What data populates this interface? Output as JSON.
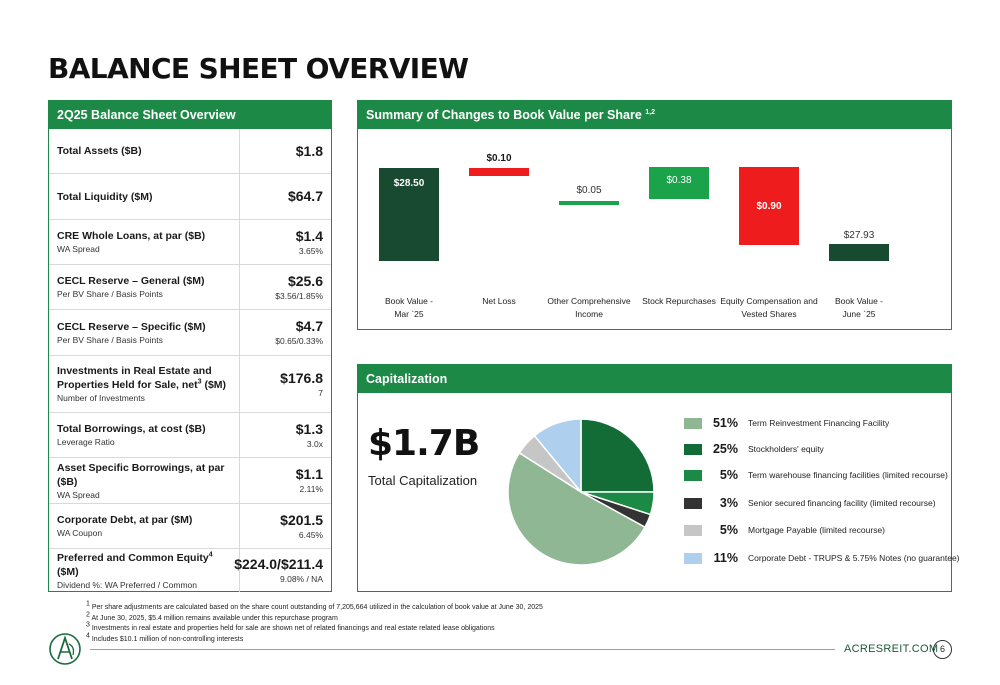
{
  "page": {
    "title": "BALANCE SHEET OVERVIEW"
  },
  "balance_table": {
    "title": "2Q25 Balance Sheet Overview",
    "rows": [
      {
        "label": "Total Assets ($B)",
        "sub": "",
        "value": "$1.8",
        "subvalue": ""
      },
      {
        "label": "Total Liquidity ($M)",
        "sub": "",
        "value": "$64.7",
        "subvalue": ""
      },
      {
        "label": "CRE Whole Loans, at par ($B)",
        "sub": "WA Spread",
        "value": "$1.4",
        "subvalue": "3.65%"
      },
      {
        "label": "CECL Reserve – General ($M)",
        "sub": "Per BV Share / Basis Points",
        "value": "$25.6",
        "subvalue": "$3.56/1.85%"
      },
      {
        "label": "CECL Reserve – Specific ($M)",
        "sub": "Per BV Share / Basis Points",
        "value": "$4.7",
        "subvalue": "$0.65/0.33%"
      },
      {
        "label_line1": "Investments in Real Estate and",
        "label_line2": "Properties Held for Sale, net",
        "label_sup": "3",
        "label_tail": " ($M)",
        "sub": "Number of Investments",
        "value": "$176.8",
        "subvalue": "7"
      },
      {
        "label": "Total Borrowings, at cost ($B)",
        "sub": "Leverage Ratio",
        "value": "$1.3",
        "subvalue": "3.0x"
      },
      {
        "label": "Asset Specific Borrowings, at par ($B)",
        "sub": "WA Spread",
        "value": "$1.1",
        "subvalue": "2.11%"
      },
      {
        "label": "Corporate Debt, at par ($M)",
        "sub": "WA Coupon",
        "value": "$201.5",
        "subvalue": "6.45%"
      },
      {
        "label_line1": "Preferred and Common Equity",
        "label_sup": "4",
        "label_tail": " ($M)",
        "sub": "Dividend %: WA Preferred / Common",
        "value": "$224.0/$211.4",
        "subvalue": "9.08% / NA"
      }
    ]
  },
  "summary": {
    "title": "Summary of Changes to Book Value per Share",
    "title_sup": "1,2"
  },
  "chart_data": [
    {
      "type": "bar",
      "subtype": "waterfall",
      "categories": [
        "Book Value - Mar `25",
        "Net Loss",
        "Other Comprehensive Income",
        "Stock Repurchases",
        "Equity Compensation and Vested Shares",
        "Book Value - June `25"
      ],
      "category_lines": [
        [
          "Book Value -",
          "Mar `25"
        ],
        [
          "Net Loss"
        ],
        [
          "Other Comprehensive",
          "Income"
        ],
        [
          "Stock Repurchases"
        ],
        [
          "Equity Compensation and",
          "Vested Shares"
        ],
        [
          "Book Value -",
          "June `25"
        ]
      ],
      "values": [
        28.5,
        -0.1,
        0.05,
        0.38,
        -0.9,
        27.93
      ],
      "value_labels": [
        "$28.50",
        "$0.10",
        "$0.05",
        "$0.38",
        "$0.90",
        "$27.93"
      ],
      "bar_kinds": [
        "total",
        "decrease",
        "increase",
        "increase",
        "decrease",
        "total"
      ],
      "colors": {
        "total": "#184a32",
        "decrease": "#ee1c1c",
        "increase": "#1aa34a"
      },
      "title": "Summary of Changes to Book Value per Share"
    },
    {
      "type": "pie",
      "title": "Capitalization",
      "categories": [
        "Term Reinvestment Financing Facility",
        "Stockholders' equity",
        "Term warehouse financing facilities (limited recourse)",
        "Senior secured financing facility (limited recourse)",
        "Mortgage Payable (limited recourse)",
        "Corporate Debt - TRUPS & 5.75% Notes (no guarantee)"
      ],
      "values": [
        51,
        25,
        5,
        3,
        5,
        11
      ],
      "value_labels": [
        "51%",
        "25%",
        "5%",
        "3%",
        "5%",
        "11%"
      ],
      "colors": [
        "#8fb794",
        "#136b35",
        "#1b8a45",
        "#333333",
        "#c6c6c6",
        "#aecfee"
      ]
    }
  ],
  "capitalization": {
    "title": "Capitalization",
    "total_value": "$1.7B",
    "total_label": "Total Capitalization"
  },
  "footnotes": [
    {
      "num": "1",
      "text": "Per share adjustments are calculated based on the share count outstanding of 7,205,664 utilized in the calculation of book value at June 30, 2025"
    },
    {
      "num": "2",
      "text": "At June 30, 2025, $5.4 million remains available under this repurchase program"
    },
    {
      "num": "3",
      "text": "Investments in real estate and properties held for sale are shown net of related financings and real estate related lease obligations"
    },
    {
      "num": "4",
      "text": "Includes $10.1 million of non-controlling interests"
    }
  ],
  "footer": {
    "website": "ACRESREIT.COM",
    "page_number": "6",
    "logo_icon": "acres-logo-icon"
  }
}
